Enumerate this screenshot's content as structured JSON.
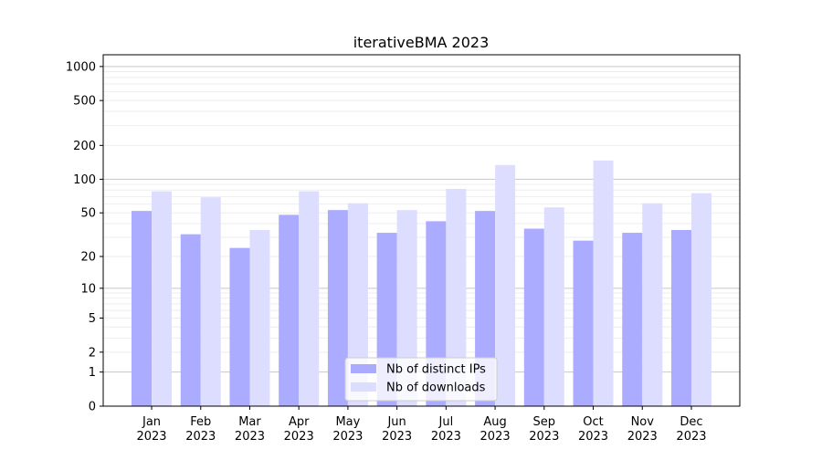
{
  "chart_data": {
    "type": "bar",
    "title": "iterativeBMA 2023",
    "xlabel": "",
    "ylabel": "",
    "yscale": "symlog (log10(1+y))",
    "ylim": [
      0,
      1270
    ],
    "yticks": [
      0,
      1,
      2,
      5,
      10,
      20,
      50,
      100,
      200,
      500,
      1000
    ],
    "grid": true,
    "legend_position": "lower-center",
    "categories": [
      "Jan\n2023",
      "Feb\n2023",
      "Mar\n2023",
      "Apr\n2023",
      "May\n2023",
      "Jun\n2023",
      "Jul\n2023",
      "Aug\n2023",
      "Sep\n2023",
      "Oct\n2023",
      "Nov\n2023",
      "Dec\n2023"
    ],
    "series": [
      {
        "name": "Nb of distinct IPs",
        "color": "#aaaaff",
        "values": [
          52,
          32,
          24,
          48,
          53,
          33,
          42,
          52,
          36,
          28,
          33,
          35
        ]
      },
      {
        "name": "Nb of downloads",
        "color": "#ddddff",
        "values": [
          78,
          69,
          35,
          78,
          61,
          53,
          82,
          134,
          56,
          147,
          61,
          75
        ]
      }
    ]
  }
}
